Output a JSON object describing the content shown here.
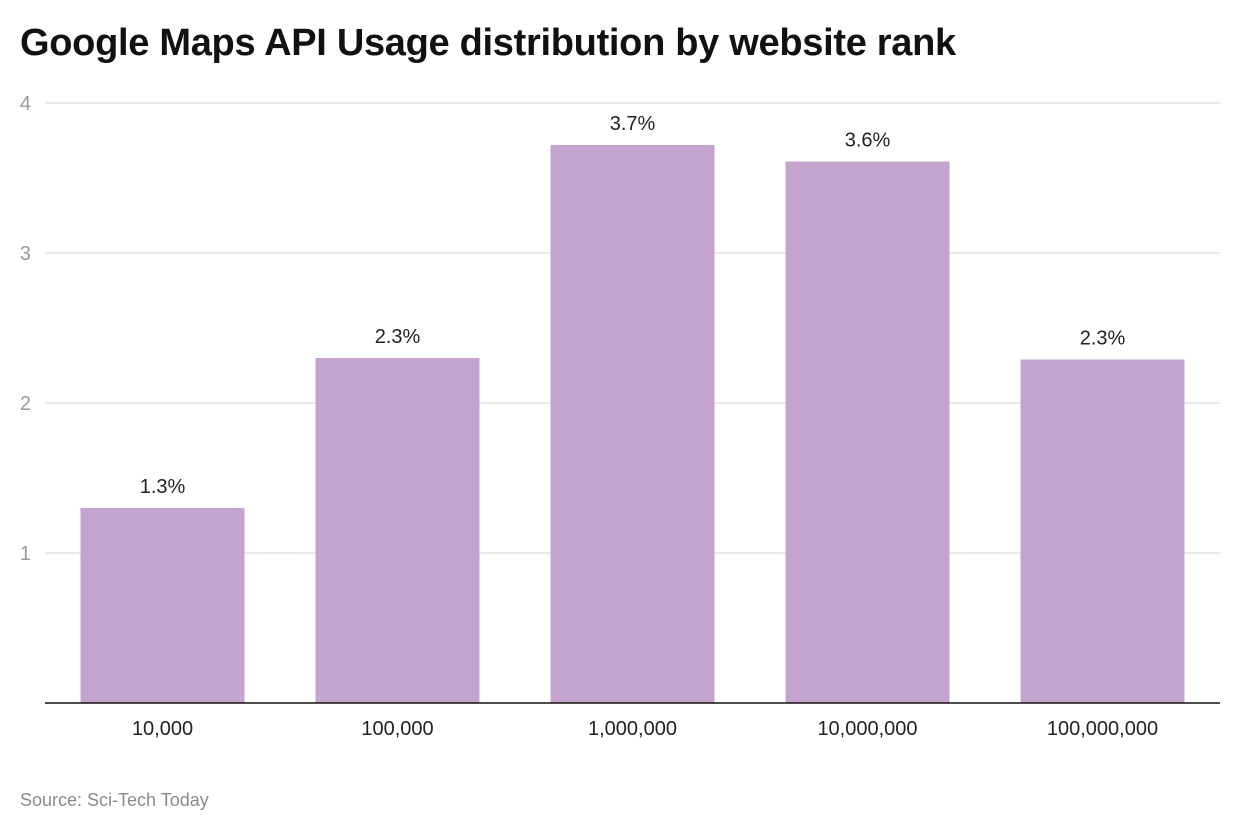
{
  "title": "Google Maps API Usage distribution by website rank",
  "source": "Source: Sci-Tech Today",
  "chart_data": {
    "type": "bar",
    "title": "Google Maps API Usage distribution by website rank",
    "categories": [
      "10,000",
      "100,000",
      "1,000,000",
      "10,000,000",
      "100,000,000"
    ],
    "values": [
      1.3,
      2.3,
      3.72,
      3.61,
      2.29
    ],
    "data_labels": [
      "1.3%",
      "2.3%",
      "3.7%",
      "3.6%",
      "2.3%"
    ],
    "yticks": [
      "1",
      "2",
      "3",
      "4"
    ],
    "ylim": [
      0,
      4
    ],
    "grid": true,
    "bar_color": "#c5a3cf",
    "xlabel": "",
    "ylabel": ""
  }
}
